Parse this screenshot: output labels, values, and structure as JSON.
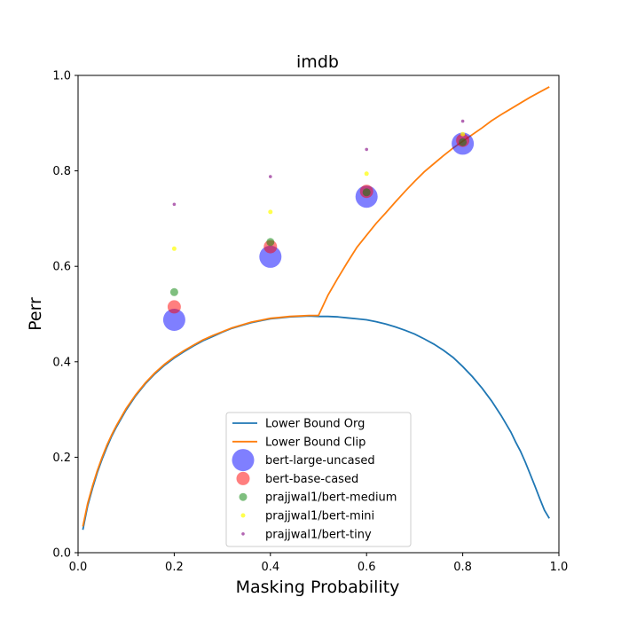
{
  "chart_data": {
    "type": "scatter",
    "title": "imdb",
    "xlabel": "Masking Probability",
    "ylabel": "Perr",
    "xlim": [
      0.0,
      1.0
    ],
    "ylim": [
      0.0,
      1.0
    ],
    "xticks": [
      "0.0",
      "0.2",
      "0.4",
      "0.6",
      "0.8",
      "1.0"
    ],
    "yticks": [
      "0.0",
      "0.2",
      "0.4",
      "0.6",
      "0.8",
      "1.0"
    ],
    "grid": false,
    "legend_position": "lower-center",
    "lines": [
      {
        "name": "Lower Bound Org",
        "color": "#1f77b4",
        "x": [
          0.01,
          0.02,
          0.03,
          0.04,
          0.05,
          0.06,
          0.07,
          0.08,
          0.1,
          0.12,
          0.14,
          0.16,
          0.18,
          0.2,
          0.22,
          0.24,
          0.26,
          0.28,
          0.3,
          0.32,
          0.34,
          0.36,
          0.38,
          0.4,
          0.42,
          0.44,
          0.46,
          0.48,
          0.5,
          0.52,
          0.54,
          0.56,
          0.58,
          0.6,
          0.62,
          0.64,
          0.66,
          0.68,
          0.7,
          0.72,
          0.74,
          0.76,
          0.78,
          0.8,
          0.82,
          0.84,
          0.86,
          0.88,
          0.9,
          0.91,
          0.92,
          0.93,
          0.94,
          0.95,
          0.96,
          0.97,
          0.98
        ],
        "y": [
          0.048,
          0.098,
          0.135,
          0.168,
          0.196,
          0.221,
          0.244,
          0.264,
          0.299,
          0.329,
          0.354,
          0.375,
          0.393,
          0.408,
          0.421,
          0.433,
          0.444,
          0.453,
          0.462,
          0.47,
          0.476,
          0.482,
          0.486,
          0.49,
          0.492,
          0.494,
          0.495,
          0.496,
          0.495,
          0.495,
          0.494,
          0.492,
          0.49,
          0.488,
          0.484,
          0.479,
          0.473,
          0.466,
          0.458,
          0.448,
          0.437,
          0.424,
          0.409,
          0.39,
          0.369,
          0.345,
          0.318,
          0.287,
          0.253,
          0.232,
          0.213,
          0.19,
          0.165,
          0.14,
          0.114,
          0.089,
          0.072
        ]
      },
      {
        "name": "Lower Bound Clip",
        "color": "#ff7f0e",
        "x": [
          0.01,
          0.02,
          0.03,
          0.04,
          0.05,
          0.06,
          0.07,
          0.08,
          0.1,
          0.12,
          0.14,
          0.16,
          0.18,
          0.2,
          0.22,
          0.24,
          0.26,
          0.28,
          0.3,
          0.32,
          0.34,
          0.36,
          0.38,
          0.4,
          0.42,
          0.44,
          0.46,
          0.48,
          0.5,
          0.52,
          0.54,
          0.56,
          0.58,
          0.6,
          0.62,
          0.64,
          0.66,
          0.68,
          0.7,
          0.72,
          0.74,
          0.76,
          0.78,
          0.8,
          0.82,
          0.84,
          0.86,
          0.88,
          0.9,
          0.92,
          0.94,
          0.96,
          0.98
        ],
        "y": [
          0.055,
          0.103,
          0.14,
          0.172,
          0.2,
          0.225,
          0.247,
          0.267,
          0.302,
          0.331,
          0.356,
          0.377,
          0.395,
          0.41,
          0.423,
          0.435,
          0.446,
          0.455,
          0.463,
          0.471,
          0.477,
          0.483,
          0.487,
          0.491,
          0.493,
          0.495,
          0.496,
          0.497,
          0.497,
          0.54,
          0.575,
          0.608,
          0.64,
          0.665,
          0.69,
          0.712,
          0.735,
          0.757,
          0.778,
          0.798,
          0.815,
          0.832,
          0.848,
          0.862,
          0.876,
          0.89,
          0.905,
          0.918,
          0.93,
          0.942,
          0.954,
          0.965,
          0.976
        ]
      }
    ],
    "scatter_series": [
      {
        "name": "bert-large-uncased",
        "color": "#0000ff",
        "alpha": 0.5,
        "size": 12.5,
        "x": [
          0.2,
          0.4,
          0.6,
          0.8
        ],
        "y": [
          0.488,
          0.62,
          0.746,
          0.857
        ]
      },
      {
        "name": "bert-base-cased",
        "color": "#ff0000",
        "alpha": 0.5,
        "size": 7.5,
        "x": [
          0.2,
          0.4,
          0.6,
          0.8
        ],
        "y": [
          0.515,
          0.641,
          0.757,
          0.864
        ]
      },
      {
        "name": "prajjwal1/bert-medium",
        "color": "#008000",
        "alpha": 0.5,
        "size": 4.5,
        "x": [
          0.2,
          0.4,
          0.6,
          0.8
        ],
        "y": [
          0.546,
          0.651,
          0.755,
          0.86
        ]
      },
      {
        "name": "prajjwal1/bert-mini",
        "color": "#ffff00",
        "alpha": 0.7,
        "size": 2.5,
        "x": [
          0.2,
          0.4,
          0.6,
          0.8
        ],
        "y": [
          0.637,
          0.714,
          0.794,
          0.877
        ]
      },
      {
        "name": "prajjwal1/bert-tiny",
        "color": "#800080",
        "alpha": 0.6,
        "size": 1.8,
        "x": [
          0.2,
          0.4,
          0.6,
          0.8
        ],
        "y": [
          0.73,
          0.788,
          0.845,
          0.904
        ]
      }
    ]
  }
}
